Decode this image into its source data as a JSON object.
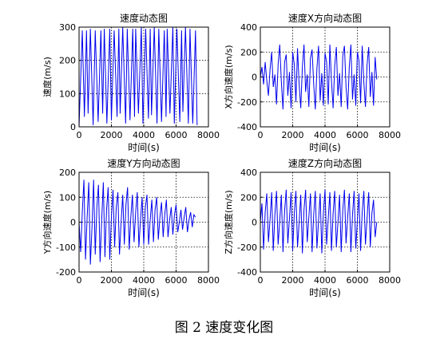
{
  "caption": "图 2  速度变化图",
  "colors": {
    "line": "#0000ee",
    "grid": "#000000",
    "axes": "#000000"
  },
  "chart_data": [
    {
      "type": "line",
      "title": "速度动态图",
      "xlabel": "时间(s)",
      "ylabel": "速度(m/s)",
      "xlim": [
        0,
        8000
      ],
      "ylim": [
        0,
        300
      ],
      "xticks": [
        0,
        2000,
        4000,
        6000,
        8000
      ],
      "yticks": [
        0,
        100,
        200,
        300
      ],
      "grid": true,
      "x": [
        0,
        200,
        330,
        460,
        560,
        700,
        870,
        1000,
        1180,
        1350,
        1460,
        1560,
        1720,
        1900,
        2000,
        2170,
        2350,
        2460,
        2540,
        2700,
        2880,
        2980,
        3150,
        3320,
        3430,
        3500,
        3670,
        3850,
        3950,
        4120,
        4290,
        4400,
        4480,
        4650,
        4820,
        4930,
        5100,
        5270,
        5380,
        5450,
        5620,
        5800,
        5890,
        6050,
        6230,
        6340,
        6420,
        6580,
        6760,
        6860,
        7030,
        7200,
        7300
      ],
      "y": [
        0,
        290,
        30,
        290,
        40,
        295,
        5,
        290,
        15,
        290,
        40,
        295,
        10,
        295,
        20,
        290,
        30,
        295,
        40,
        300,
        10,
        295,
        20,
        295,
        30,
        295,
        40,
        300,
        10,
        295,
        25,
        295,
        35,
        300,
        10,
        295,
        15,
        290,
        30,
        295,
        40,
        300,
        10,
        295,
        15,
        290,
        45,
        300,
        10,
        295,
        10,
        290,
        5
      ]
    },
    {
      "type": "line",
      "title": "速度X方向动态图",
      "xlabel": "时间(s)",
      "ylabel": "X方向速度(m/s)",
      "xlim": [
        0,
        8000
      ],
      "ylim": [
        -400,
        400
      ],
      "xticks": [
        0,
        2000,
        4000,
        6000,
        8000
      ],
      "yticks": [
        -400,
        -200,
        0,
        200,
        400
      ],
      "grid": true,
      "x": [
        0,
        100,
        200,
        300,
        400,
        500,
        600,
        700,
        800,
        900,
        1000,
        1100,
        1200,
        1300,
        1400,
        1500,
        1600,
        1700,
        1800,
        1900,
        2000,
        2100,
        2200,
        2300,
        2400,
        2500,
        2600,
        2700,
        2800,
        2900,
        3000,
        3100,
        3200,
        3300,
        3400,
        3500,
        3600,
        3700,
        3800,
        3900,
        4000,
        4100,
        4200,
        4300,
        4400,
        4500,
        4600,
        4700,
        4800,
        4900,
        5000,
        5100,
        5200,
        5300,
        5400,
        5500,
        5600,
        5700,
        5800,
        5900,
        6000,
        6100,
        6200,
        6300,
        6400,
        6500,
        6600,
        6700,
        6800,
        6900,
        7000,
        7100,
        7200
      ],
      "y": [
        0,
        80,
        -60,
        120,
        -30,
        -150,
        60,
        200,
        -80,
        20,
        -220,
        100,
        260,
        -40,
        -260,
        120,
        180,
        -150,
        40,
        -250,
        200,
        100,
        -200,
        230,
        -60,
        -250,
        80,
        260,
        -120,
        20,
        -240,
        150,
        220,
        -60,
        -260,
        70,
        250,
        -190,
        30,
        -230,
        190,
        120,
        -220,
        260,
        -30,
        -250,
        90,
        240,
        -150,
        30,
        -240,
        170,
        250,
        -80,
        -260,
        80,
        260,
        -180,
        20,
        -230,
        200,
        130,
        -210,
        250,
        -40,
        -240,
        100,
        240,
        -160,
        40,
        -230,
        160,
        -20
      ]
    },
    {
      "type": "line",
      "title": "速度Y方向动态图",
      "xlabel": "时间(s)",
      "ylabel": "Y方向速度(m/s)",
      "xlim": [
        0,
        8000
      ],
      "ylim": [
        -200,
        200
      ],
      "xticks": [
        0,
        2000,
        4000,
        6000,
        8000
      ],
      "yticks": [
        -200,
        -100,
        0,
        100,
        200
      ],
      "grid": true,
      "x": [
        0,
        100,
        200,
        300,
        400,
        500,
        600,
        700,
        800,
        900,
        1000,
        1100,
        1200,
        1300,
        1400,
        1500,
        1600,
        1700,
        1800,
        1900,
        2000,
        2100,
        2200,
        2300,
        2400,
        2500,
        2600,
        2700,
        2800,
        2900,
        3000,
        3100,
        3200,
        3300,
        3400,
        3500,
        3600,
        3700,
        3800,
        3900,
        4000,
        4100,
        4200,
        4300,
        4400,
        4500,
        4600,
        4700,
        4800,
        4900,
        5000,
        5100,
        5200,
        5300,
        5400,
        5500,
        5600,
        5700,
        5800,
        5900,
        6000,
        6100,
        6200,
        6300,
        6400,
        6500,
        6600,
        6700,
        6800,
        6900,
        7000,
        7100,
        7200
      ],
      "y": [
        0,
        -120,
        40,
        170,
        -150,
        20,
        160,
        -170,
        -20,
        170,
        -130,
        60,
        150,
        -160,
        10,
        160,
        -140,
        50,
        140,
        -150,
        20,
        130,
        -100,
        60,
        120,
        -130,
        0,
        110,
        -90,
        70,
        140,
        -110,
        20,
        110,
        -80,
        40,
        120,
        -100,
        10,
        100,
        -90,
        60,
        110,
        -90,
        10,
        90,
        -80,
        50,
        100,
        -70,
        20,
        80,
        -60,
        30,
        90,
        -60,
        10,
        60,
        -50,
        30,
        70,
        -40,
        0,
        50,
        -30,
        20,
        60,
        -40,
        10,
        40,
        -20,
        30,
        20
      ]
    },
    {
      "type": "line",
      "title": "速度Z方向动态图",
      "xlabel": "时间(s)",
      "ylabel": "Z方向速度(m/s)",
      "xlim": [
        0,
        8000
      ],
      "ylim": [
        -400,
        400
      ],
      "xticks": [
        0,
        2000,
        4000,
        6000,
        8000
      ],
      "yticks": [
        -400,
        -200,
        0,
        200,
        400
      ],
      "grid": true,
      "x": [
        0,
        100,
        200,
        300,
        400,
        500,
        600,
        700,
        800,
        900,
        1000,
        1100,
        1200,
        1300,
        1400,
        1500,
        1600,
        1700,
        1800,
        1900,
        2000,
        2100,
        2200,
        2300,
        2400,
        2500,
        2600,
        2700,
        2800,
        2900,
        3000,
        3100,
        3200,
        3300,
        3400,
        3500,
        3600,
        3700,
        3800,
        3900,
        4000,
        4100,
        4200,
        4300,
        4400,
        4500,
        4600,
        4700,
        4800,
        4900,
        5000,
        5100,
        5200,
        5300,
        5400,
        5500,
        5600,
        5700,
        5800,
        5900,
        6000,
        6100,
        6200,
        6300,
        6400,
        6500,
        6600,
        6700,
        6800,
        6900,
        7000,
        7100,
        7200
      ],
      "y": [
        0,
        150,
        -220,
        80,
        230,
        -160,
        20,
        240,
        -230,
        60,
        250,
        -180,
        10,
        220,
        -240,
        90,
        260,
        -170,
        30,
        240,
        -230,
        70,
        250,
        -200,
        0,
        220,
        -250,
        100,
        260,
        -160,
        40,
        230,
        -240,
        60,
        250,
        -210,
        10,
        230,
        -250,
        80,
        260,
        -180,
        30,
        240,
        -230,
        70,
        250,
        -200,
        0,
        220,
        -240,
        100,
        260,
        -170,
        40,
        230,
        -240,
        60,
        250,
        -210,
        10,
        230,
        -230,
        80,
        250,
        -180,
        30,
        240,
        -200,
        70,
        180,
        -120,
        0
      ]
    }
  ]
}
